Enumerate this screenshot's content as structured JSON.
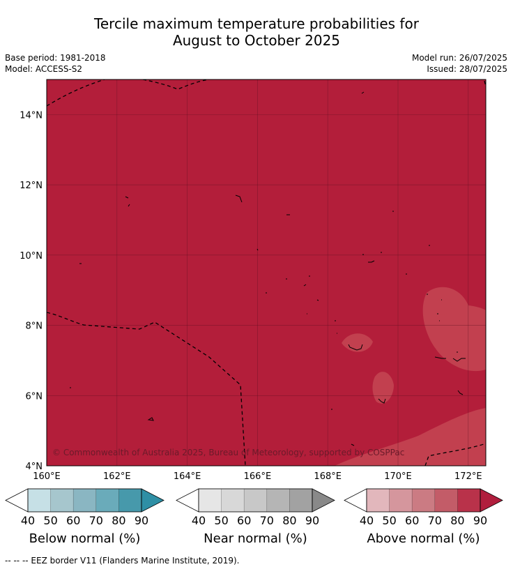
{
  "title": {
    "line1": "Tercile maximum temperature probabilities for",
    "line2": "August to October 2025"
  },
  "meta": {
    "base_period": "Base period: 1981-2018",
    "model": "Model: ACCESS-S2",
    "model_run": "Model run: 26/07/2025",
    "issued": "Issued: 28/07/2025"
  },
  "map": {
    "lon_range": [
      160,
      172.5
    ],
    "lat_range": [
      4,
      15
    ],
    "x_ticks": [
      "160°E",
      "162°E",
      "164°E",
      "166°E",
      "168°E",
      "170°E",
      "172°E"
    ],
    "y_ticks": [
      "4°N",
      "6°N",
      "8°N",
      "10°N",
      "12°N",
      "14°N"
    ],
    "gridlines": true,
    "fill_color": "#b31e3a",
    "lighter_color": "#c2404f",
    "copyright": "© Commonwealth of Australia 2025, Bureau of Meteorology, supported by COSPPac",
    "eez_line_color": "#000000"
  },
  "colorbars": [
    {
      "title": "Below normal (%)",
      "ticks": [
        "40",
        "50",
        "60",
        "70",
        "80",
        "90"
      ],
      "colors": [
        "#c6e0e6",
        "#a6c6cd",
        "#8ab6c2",
        "#6aabba",
        "#4799ab"
      ],
      "extend_color": "#2e8fa5"
    },
    {
      "title": "Near normal (%)",
      "ticks": [
        "40",
        "50",
        "60",
        "70",
        "80",
        "90"
      ],
      "colors": [
        "#e6e6e6",
        "#d8d8d8",
        "#c8c8c8",
        "#b5b5b5",
        "#a2a2a2"
      ],
      "extend_color": "#898989"
    },
    {
      "title": "Above normal (%)",
      "ticks": [
        "40",
        "50",
        "60",
        "70",
        "80",
        "90"
      ],
      "colors": [
        "#e2b7bc",
        "#d5969d",
        "#cb7b83",
        "#c35c68",
        "#b9324a"
      ],
      "extend_color": "#b01e3d"
    }
  ],
  "footnote": "--  --  -- EEZ border V11 (Flanders Marine Institute, 2019)."
}
